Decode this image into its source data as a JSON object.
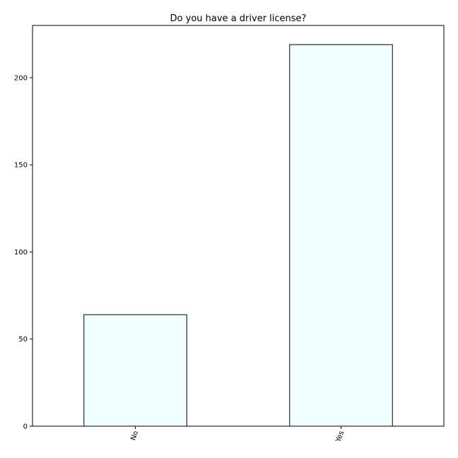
{
  "chart_data": {
    "type": "bar",
    "title": "Do you have a driver license?",
    "xlabel": "",
    "ylabel": "",
    "categories": [
      "No",
      "Yes"
    ],
    "values": [
      64,
      219
    ],
    "ylim": [
      0,
      230
    ],
    "yticks": [
      0,
      50,
      100,
      150,
      200
    ],
    "grid": false,
    "legend": "none",
    "bar_fill": "#f0ffff",
    "bar_edge": "#000000"
  }
}
